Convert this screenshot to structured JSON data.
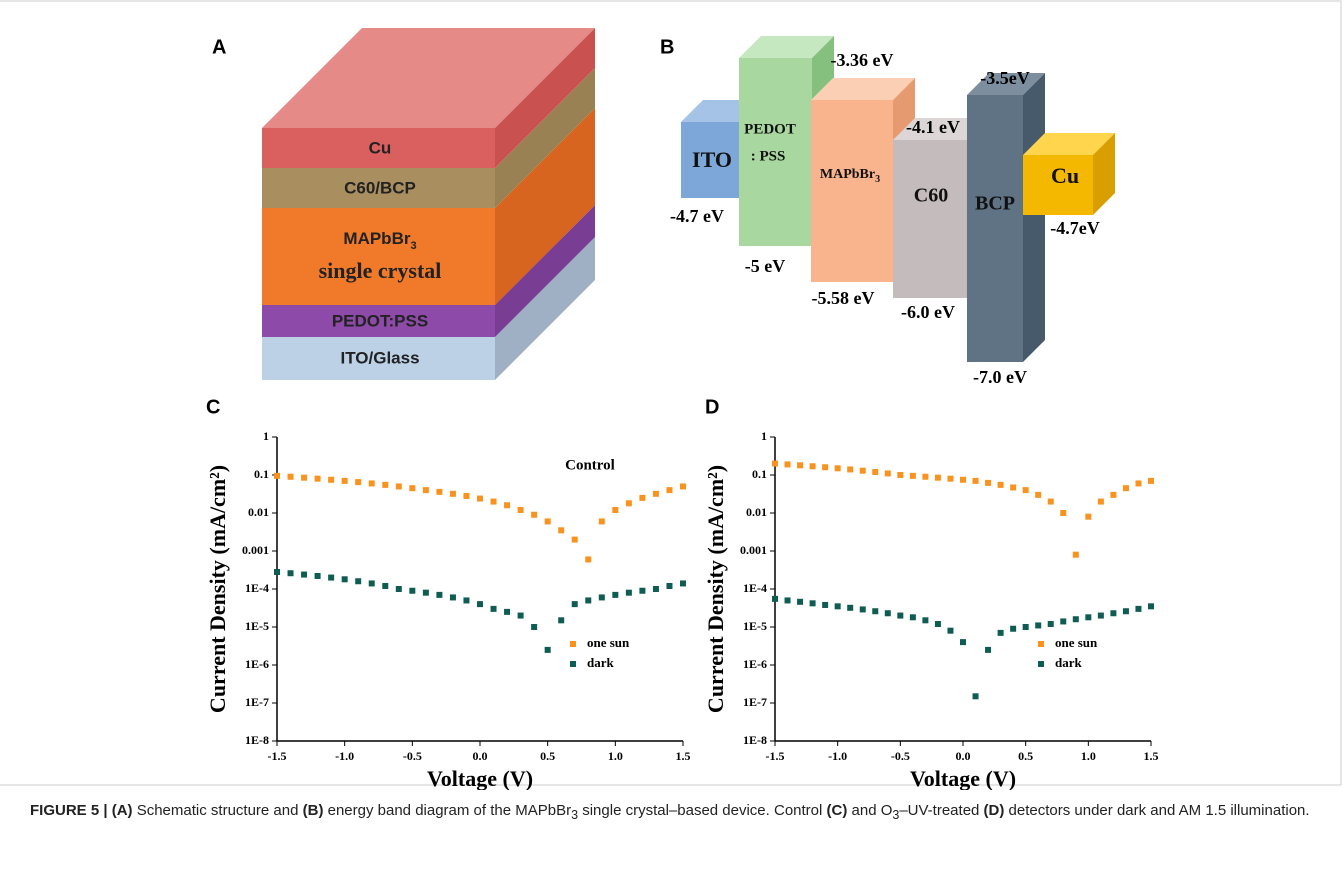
{
  "panels": {
    "a": {
      "label": "A",
      "layers": [
        "Cu",
        "C60/BCP",
        "PEDOT:PSS",
        "ITO/Glass"
      ],
      "crystal": [
        "MAPbBr",
        "3",
        "single crystal"
      ]
    },
    "b": {
      "label": "B",
      "boxes": [
        "ITO",
        "PEDOT",
        ": PSS",
        "C60",
        "BCP",
        "Cu"
      ],
      "perovskite": [
        "MAPbBr",
        "3"
      ],
      "levels": [
        "-3.36 eV",
        "-4.7 eV",
        "-5 eV",
        "-5.58 eV",
        "-4.1 eV",
        "-6.0 eV",
        "-3.5eV",
        "-4.7eV",
        "-7.0 eV"
      ]
    }
  },
  "chart_data": [
    {
      "type": "scatter",
      "panel_label": "C",
      "annotation": "Control",
      "xlabel": "Voltage (V)",
      "ylabel": "Current Density (mA/cm²)",
      "yscale": "log",
      "legend": "lower right",
      "xlim": [
        -1.5,
        1.5
      ],
      "xticks": [
        -1.5,
        {
          "value": -1,
          "label": "-1.0"
        },
        -0.5,
        {
          "value": 0,
          "label": "0.0"
        },
        0.5,
        {
          "value": 1,
          "label": "1.0"
        },
        1.5
      ],
      "ylim": [
        1e-08,
        1
      ],
      "yticks": [
        {
          "value": 1e-08,
          "label": "1E-8"
        },
        {
          "value": 1e-07,
          "label": "1E-7"
        },
        {
          "value": 1e-06,
          "label": "1E-6"
        },
        {
          "value": 1e-05,
          "label": "1E-5"
        },
        {
          "value": 0.0001,
          "label": "1E-4"
        },
        0.001,
        0.01,
        0.1,
        1
      ],
      "x": [
        -1.5,
        -1.4,
        -1.3,
        -1.2,
        -1.1,
        -1.0,
        -0.9,
        -0.8,
        -0.7,
        -0.6,
        -0.5,
        -0.4,
        -0.3,
        -0.2,
        -0.1,
        0,
        0.1,
        0.2,
        0.3,
        0.4,
        0.5,
        0.6,
        0.7,
        0.8,
        0.9,
        1.0,
        1.1,
        1.2,
        1.3,
        1.4,
        1.5
      ],
      "series": [
        {
          "name": "one sun",
          "color": "#f7931e",
          "values": [
            0.095,
            0.09,
            0.085,
            0.08,
            0.075,
            0.07,
            0.065,
            0.06,
            0.055,
            0.05,
            0.045,
            0.04,
            0.036,
            0.032,
            0.028,
            0.024,
            0.02,
            0.016,
            0.012,
            0.009,
            0.006,
            0.0035,
            0.002,
            0.0006,
            0.006,
            0.012,
            0.018,
            0.025,
            0.032,
            0.04,
            0.05
          ]
        },
        {
          "name": "dark",
          "color": "#0f5c52",
          "values": [
            0.00028,
            0.00026,
            0.00024,
            0.00022,
            0.0002,
            0.00018,
            0.00016,
            0.00014,
            0.00012,
            0.0001,
            9e-05,
            8e-05,
            7e-05,
            6e-05,
            5e-05,
            4e-05,
            3e-05,
            2.5e-05,
            2e-05,
            1e-05,
            2.5e-06,
            1.5e-05,
            4e-05,
            5e-05,
            6e-05,
            7e-05,
            8e-05,
            9e-05,
            0.0001,
            0.00012,
            0.00014
          ]
        }
      ]
    },
    {
      "type": "scatter",
      "panel_label": "D",
      "xlabel": "Voltage (V)",
      "ylabel": "Current Density (mA/cm²)",
      "yscale": "log",
      "legend": "lower right",
      "xlim": [
        -1.5,
        1.5
      ],
      "xticks": [
        -1.5,
        {
          "value": -1,
          "label": "-1.0"
        },
        -0.5,
        {
          "value": 0,
          "label": "0.0"
        },
        0.5,
        {
          "value": 1,
          "label": "1.0"
        },
        1.5
      ],
      "ylim": [
        1e-08,
        1
      ],
      "yticks": [
        {
          "value": 1e-08,
          "label": "1E-8"
        },
        {
          "value": 1e-07,
          "label": "1E-7"
        },
        {
          "value": 1e-06,
          "label": "1E-6"
        },
        {
          "value": 1e-05,
          "label": "1E-5"
        },
        {
          "value": 0.0001,
          "label": "1E-4"
        },
        0.001,
        0.01,
        0.1,
        1
      ],
      "x": [
        -1.5,
        -1.4,
        -1.3,
        -1.2,
        -1.1,
        -1.0,
        -0.9,
        -0.8,
        -0.7,
        -0.6,
        -0.5,
        -0.4,
        -0.3,
        -0.2,
        -0.1,
        0,
        0.1,
        0.2,
        0.3,
        0.4,
        0.5,
        0.6,
        0.7,
        0.8,
        0.9,
        1.0,
        1.1,
        1.2,
        1.3,
        1.4,
        1.5
      ],
      "series": [
        {
          "name": "one sun",
          "color": "#f7931e",
          "values": [
            0.2,
            0.19,
            0.18,
            0.17,
            0.16,
            0.15,
            0.14,
            0.13,
            0.12,
            0.11,
            0.1,
            0.095,
            0.09,
            0.085,
            0.08,
            0.075,
            0.07,
            0.062,
            0.055,
            0.047,
            0.04,
            0.03,
            0.02,
            0.01,
            0.0008,
            0.008,
            0.02,
            0.03,
            0.045,
            0.06,
            0.07
          ]
        },
        {
          "name": "dark",
          "color": "#0f5c52",
          "values": [
            5.5e-05,
            5e-05,
            4.6e-05,
            4.2e-05,
            3.8e-05,
            3.5e-05,
            3.2e-05,
            2.9e-05,
            2.6e-05,
            2.3e-05,
            2e-05,
            1.8e-05,
            1.5e-05,
            1.2e-05,
            8e-06,
            4e-06,
            1.5e-07,
            2.5e-06,
            7e-06,
            9e-06,
            1e-05,
            1.1e-05,
            1.2e-05,
            1.4e-05,
            1.6e-05,
            1.8e-05,
            2e-05,
            2.3e-05,
            2.6e-05,
            3e-05,
            3.5e-05
          ]
        }
      ]
    }
  ],
  "caption": {
    "parts": [
      "FIGURE 5 | ",
      "(A)",
      " Schematic structure and ",
      "(B)",
      " energy band diagram of the MAPbBr",
      "3",
      " single crystal–based device. Control ",
      "(C)",
      " and O",
      "3",
      "–UV-treated ",
      "(D)",
      " detectors under dark and AM 1.5 illumination."
    ]
  }
}
